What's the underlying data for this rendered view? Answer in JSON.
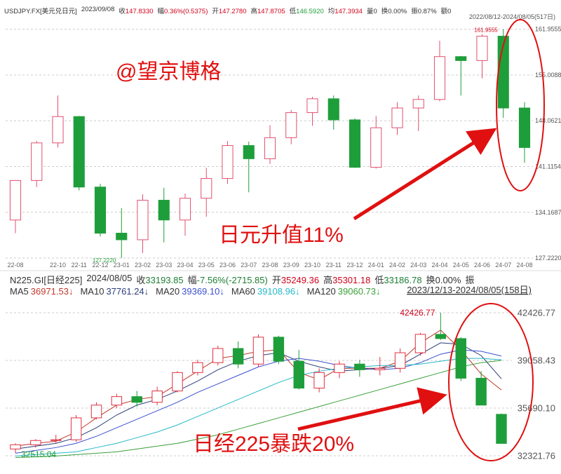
{
  "chart_data": [
    {
      "type": "candlestick",
      "title": "USDJPY.FX[美元兑日元]",
      "date": "2023/09/08",
      "info": [
        {
          "label": "收",
          "text": "147.8330",
          "color": "#d0021b"
        },
        {
          "label": "幅",
          "text": "0.36%(0.5375)",
          "color": "#d0021b"
        },
        {
          "label": "开",
          "text": "147.2780",
          "color": "#d0021b"
        },
        {
          "label": "高",
          "text": "147.8705",
          "color": "#d0021b"
        },
        {
          "label": "低",
          "text": "146.5920",
          "color": "#1e9e3a"
        },
        {
          "label": "均",
          "text": "147.3934",
          "color": "#d0021b"
        },
        {
          "label": "量",
          "text": "0",
          "color": "#333333"
        },
        {
          "label": "换",
          "text": "0.00%",
          "color": "#333333"
        },
        {
          "label": "振",
          "text": "0.87%",
          "color": "#333333"
        },
        {
          "label": "额",
          "text": "0",
          "color": "#333333"
        }
      ],
      "range_label": "2022/08/12-2024/08/05(517日)",
      "watermark": "@望京博格",
      "callout": "日元升值11%",
      "categories": [
        "22-08",
        null,
        "22-10",
        "22-11",
        "22-12",
        "23-01",
        "23-02",
        "23-03",
        "23-04",
        "23-05",
        "23-06",
        "23-07",
        "23-08",
        "23-09",
        "23-10",
        "23-11",
        "23-12",
        "24-01",
        "24-02",
        "24-03",
        "24-04",
        "24-05",
        "24-06",
        "24-07",
        "24-08"
      ],
      "open": [
        133,
        139,
        144.7,
        148.7,
        138,
        131,
        130,
        136,
        133,
        136.3,
        139.3,
        144.3,
        142.3,
        145.5,
        149.3,
        151.4,
        148.2,
        141,
        147,
        150,
        151.3,
        157.8,
        157.2,
        160.9,
        150
      ],
      "high": [
        139,
        145,
        151.9,
        148.8,
        138.5,
        134.8,
        136.9,
        137.9,
        137,
        140.9,
        145,
        144.9,
        147.4,
        149.7,
        151.7,
        151.9,
        148.4,
        148.8,
        150.9,
        151.9,
        160.2,
        157.9,
        161.2,
        161.9555,
        150.9
      ],
      "low": [
        131,
        138,
        144,
        137.5,
        130.5,
        127.222,
        128,
        129.6,
        130.6,
        133.5,
        138.5,
        137.2,
        141.5,
        144.5,
        147.3,
        146.7,
        140.9,
        140.8,
        145.9,
        146.5,
        151,
        151.9,
        154.5,
        148.5,
        141.7
      ],
      "close": [
        139,
        144.7,
        148.7,
        138,
        131,
        130,
        136,
        133,
        136.3,
        139.3,
        144.3,
        142.3,
        145.5,
        149.3,
        151.4,
        148.2,
        141,
        147,
        150,
        151.3,
        157.8,
        157.2,
        160.9,
        150,
        144
      ],
      "up_color": "#e05070",
      "down_color": "#1e9e3a",
      "annotations": [
        {
          "value": 161.9555,
          "label": "161.9555",
          "color": "#d0021b"
        },
        {
          "value": 127.222,
          "label": "127.2220",
          "color": "#1e9e3a"
        }
      ],
      "ylim": [
        126.8,
        163.2
      ],
      "yticks": [
        {
          "value": 127.222,
          "label": "127.2220"
        },
        134.1687,
        141.1154,
        148.0621,
        155.0088,
        161.9555
      ],
      "grid": true
    },
    {
      "type": "candlestick",
      "title": "N225.GI[日经225]",
      "date": "2024/08/05",
      "info": [
        {
          "label": "收",
          "text": "33193.85",
          "color": "#1e7e34"
        },
        {
          "label": "幅",
          "text": "-7.56%(-2715.85)",
          "color": "#1e7e34"
        },
        {
          "label": "开",
          "text": "35249.36",
          "color": "#d0021b"
        },
        {
          "label": "高",
          "text": "35301.18",
          "color": "#d0021b"
        },
        {
          "label": "低",
          "text": "33186.78",
          "color": "#1e7e34"
        },
        {
          "label": "换",
          "text": "0.00%",
          "color": "#333333"
        },
        {
          "label": "振",
          "text": "",
          "color": "#333333"
        }
      ],
      "range_label": "2023/12/13-2024/08/05(158日)",
      "callout": "日经225暴跌20%",
      "categories": [
        null,
        null,
        null,
        null,
        null,
        null,
        null,
        null,
        null,
        null,
        null,
        null,
        null,
        null,
        null,
        null,
        null,
        null,
        null,
        null,
        null,
        null,
        null,
        null,
        null
      ],
      "open": [
        32800,
        33100,
        33400,
        33450,
        35000,
        35900,
        36500,
        36100,
        36900,
        38200,
        38900,
        39900,
        38800,
        40700,
        39000,
        37100,
        38200,
        38800,
        38400,
        38500,
        39600,
        40900,
        40600,
        37800,
        35249.36
      ],
      "high": [
        33200,
        33500,
        33800,
        35200,
        36100,
        36700,
        36900,
        37200,
        38300,
        39100,
        40100,
        40400,
        40900,
        40800,
        39800,
        38500,
        39000,
        39100,
        39300,
        39900,
        41000,
        42426.77,
        40700,
        38300,
        35301.18
      ],
      "low": [
        32515.04,
        32900,
        33200,
        33300,
        34900,
        35700,
        35800,
        35900,
        36800,
        38000,
        38700,
        38500,
        38600,
        38800,
        37000,
        36800,
        37800,
        37900,
        38000,
        38200,
        39400,
        40500,
        37600,
        35900,
        33186.78
      ],
      "close": [
        33100,
        33400,
        33450,
        35000,
        35900,
        36500,
        36100,
        36900,
        38200,
        38900,
        39900,
        38800,
        40700,
        39000,
        37100,
        38200,
        38800,
        38400,
        38500,
        39600,
        40900,
        40600,
        37800,
        35900,
        33193.85
      ],
      "up_color": "#e03040",
      "down_color": "#1e9e3a",
      "series": [
        {
          "name": "MA5",
          "color": "#c0392b",
          "last_label": "36971.53↓",
          "values": [
            33000,
            33200,
            33350,
            34000,
            35000,
            35900,
            36300,
            36500,
            37400,
            38300,
            39200,
            39400,
            39700,
            39800,
            38200,
            37700,
            38500,
            38500,
            38500,
            39000,
            40300,
            41200,
            39800,
            38100,
            36971.53
          ]
        },
        {
          "name": "MA10",
          "color": "#2c3e7a",
          "last_label": "37761.24↓",
          "values": [
            32800,
            33000,
            33200,
            33600,
            34300,
            35200,
            35900,
            36300,
            36900,
            37600,
            38400,
            39000,
            39400,
            39600,
            39000,
            38600,
            38300,
            38400,
            38500,
            38700,
            39500,
            40300,
            40200,
            39400,
            37761.24
          ]
        },
        {
          "name": "MA20",
          "color": "#3a4fd0",
          "last_label": "39369.10↓",
          "values": [
            32500,
            32700,
            32900,
            33200,
            33700,
            34300,
            34900,
            35500,
            36100,
            36800,
            37400,
            38000,
            38600,
            39000,
            39200,
            39000,
            38700,
            38500,
            38400,
            38500,
            38900,
            39500,
            39800,
            39700,
            39369.1
          ]
        },
        {
          "name": "MA60",
          "color": "#26b8c8",
          "last_label": "39108.96↓",
          "values": [
            32300,
            32400,
            32500,
            32600,
            32900,
            33200,
            33600,
            34000,
            34500,
            35100,
            35700,
            36300,
            36900,
            37500,
            38000,
            38300,
            38500,
            38600,
            38700,
            38700,
            38800,
            39000,
            39200,
            39200,
            39108.96
          ]
        },
        {
          "name": "MA120",
          "color": "#3aa03a",
          "last_label": "39060.73↓",
          "values": [
            32200,
            32250,
            32300,
            32400,
            32500,
            32600,
            32800,
            33000,
            33200,
            33500,
            33800,
            34200,
            34600,
            35000,
            35400,
            35800,
            36200,
            36600,
            37000,
            37400,
            37800,
            38200,
            38600,
            38900,
            39060.73
          ]
        }
      ],
      "annotations": [
        {
          "value": 42426.77,
          "label": "42426.77",
          "color": "#d0021b"
        },
        {
          "value": 32515.04,
          "label": "32515.04",
          "color": "#1e9e3a"
        }
      ],
      "ylim": [
        31826,
        43467
      ],
      "yticks": [
        32321.76,
        {
          "value": 35690.1,
          "label": "35690.10"
        },
        39058.43,
        42426.77
      ],
      "grid": true
    }
  ]
}
